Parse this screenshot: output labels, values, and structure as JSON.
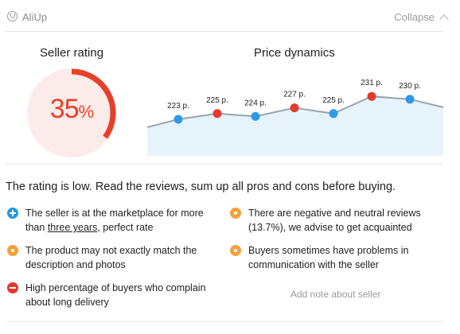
{
  "header": {
    "app_title": "AliUp",
    "collapse_label": "Collapse"
  },
  "seller_rating": {
    "title": "Seller rating",
    "value": "35",
    "percent_sign": "%",
    "fraction": 0.35,
    "color": "#e7402a"
  },
  "price_dynamics": {
    "title": "Price dynamics",
    "chart_data": {
      "type": "area",
      "title": "Price dynamics",
      "points": [
        {
          "label": "223 р.",
          "value": 223,
          "color": "#2d9ae6"
        },
        {
          "label": "225 р.",
          "value": 225,
          "color": "#e33b2e"
        },
        {
          "label": "224 р.",
          "value": 224,
          "color": "#2d9ae6"
        },
        {
          "label": "227 р.",
          "value": 227,
          "color": "#e33b2e"
        },
        {
          "label": "225 р.",
          "value": 225,
          "color": "#2d9ae6"
        },
        {
          "label": "231 р.",
          "value": 231,
          "color": "#e33b2e"
        },
        {
          "label": "230 р.",
          "value": 230,
          "color": "#2d9ae6"
        }
      ],
      "line_color": "#9aa4ad",
      "fill_color": "#e6f3fb"
    }
  },
  "summary": "The rating is low. Read the reviews, sum up all pros and cons before buying.",
  "items": [
    {
      "type": "plus",
      "color": "blue",
      "line1_pre": "The seller is at the marketplace for more",
      "line2_pre": "than ",
      "line2_link": "three years",
      "line2_post": ", perfect rate"
    },
    {
      "type": "dot",
      "color": "orange",
      "line1": "There are negative and neutral reviews",
      "line2": "(13.7%), we advise to get acquainted"
    },
    {
      "type": "dot",
      "color": "orange",
      "line1": "The product may not exactly match the",
      "line2": "description and photos"
    },
    {
      "type": "dot",
      "color": "orange",
      "line1": "Buyers sometimes have problems in",
      "line2": "communication with the seller"
    },
    {
      "type": "minus",
      "color": "red",
      "line1": "High percentage of buyers who complain",
      "line2": "about long delivery"
    }
  ],
  "add_note_label": "Add note about seller"
}
